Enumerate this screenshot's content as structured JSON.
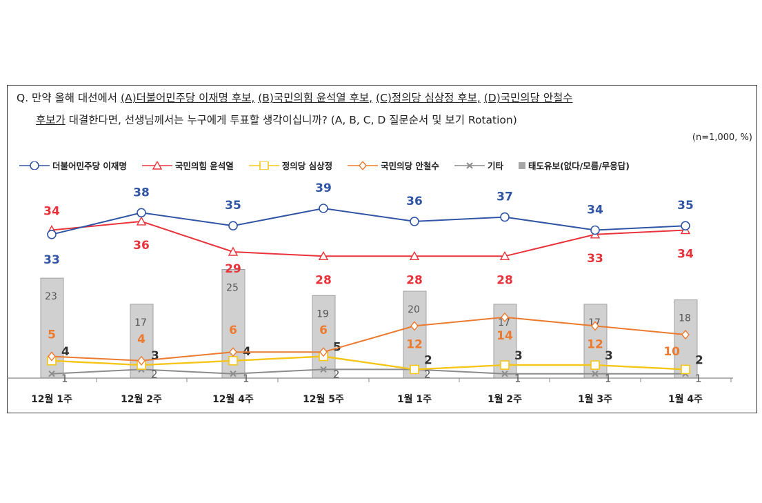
{
  "question": {
    "prefix": "Q. 만약 올해 대선에서",
    "a": "(A)더불어민주당 이재명 후보,",
    "b": "(B)국민의힘 윤석열 후보,",
    "c": "(C)정의당 심상정 후보,",
    "d": "(D)국민의당 안철수",
    "d2": "후보가",
    "rest": "대결한다면, 선생님께서는 누구에게 투표할 생각이십니까? (A, B, C, D 질문순서 및 보기 Rotation)",
    "note": "(n=1,000, %)"
  },
  "chart_data": {
    "type": "line",
    "categories": [
      "12월 1주",
      "12월 2주",
      "12월 4주",
      "12월 5주",
      "1월 1주",
      "1월 2주",
      "1월 3주",
      "1월 4주"
    ],
    "series": [
      {
        "name": "더불어민주당 이재명",
        "type": "line",
        "marker": "circle",
        "color": "#2f55a4",
        "values": [
          33,
          38,
          35,
          39,
          36,
          37,
          34,
          35
        ]
      },
      {
        "name": "국민의힘 윤석열",
        "type": "line",
        "marker": "triangle",
        "color": "#e8333b",
        "values": [
          34,
          36,
          29,
          28,
          28,
          28,
          33,
          34
        ]
      },
      {
        "name": "정의당 심상정",
        "type": "line",
        "marker": "square",
        "color": "#f5c518",
        "values": [
          4,
          3,
          4,
          5,
          2,
          3,
          3,
          2
        ]
      },
      {
        "name": "국민의당 안철수",
        "type": "line",
        "marker": "diamond",
        "color": "#ec7a2f",
        "values": [
          5,
          4,
          6,
          6,
          12,
          14,
          12,
          10
        ]
      },
      {
        "name": "기타",
        "type": "line",
        "marker": "x",
        "color": "#8c8c8c",
        "values": [
          1,
          2,
          1,
          2,
          2,
          1,
          1,
          1
        ]
      },
      {
        "name": "태도유보(없다/모름/무응답)",
        "type": "bar",
        "color": "#d0d0d0",
        "values": [
          23,
          17,
          25,
          19,
          20,
          17,
          17,
          18
        ]
      }
    ],
    "ylabel": "%",
    "legend": "top"
  }
}
